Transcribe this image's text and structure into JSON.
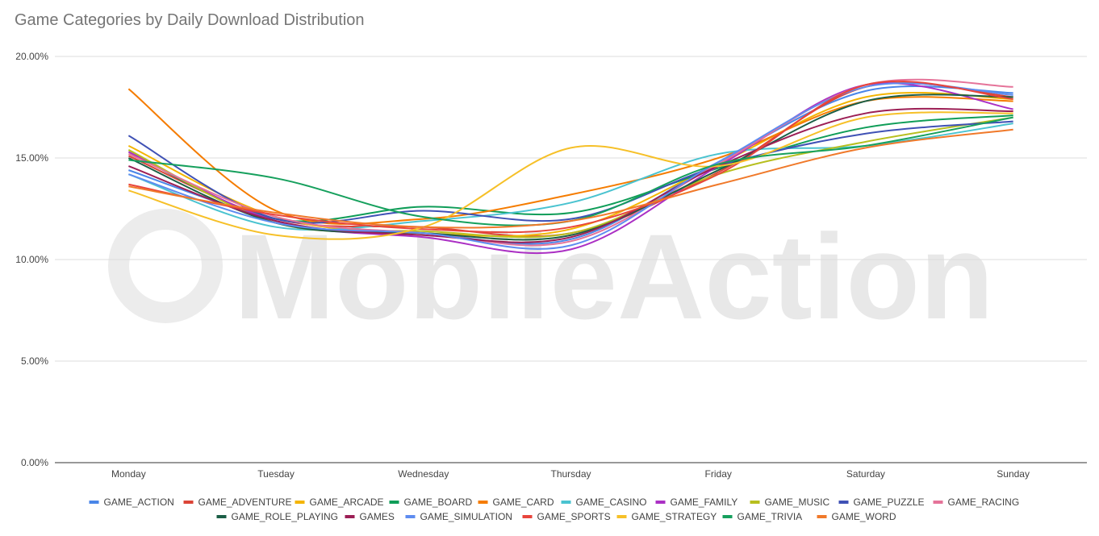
{
  "chart_data": {
    "type": "line",
    "title": "Game Categories by Daily Download Distribution",
    "watermark": "MobileAction",
    "xlabel": "",
    "ylabel": "",
    "ylim": [
      0,
      20
    ],
    "y_ticks": [
      "0.00%",
      "5.00%",
      "10.00%",
      "15.00%",
      "20.00%"
    ],
    "y_tick_values": [
      0,
      5,
      10,
      15,
      20
    ],
    "grid": true,
    "legend_position": "bottom",
    "categories": [
      "Monday",
      "Tuesday",
      "Wednesday",
      "Thursday",
      "Friday",
      "Saturday",
      "Sunday"
    ],
    "series": [
      {
        "name": "GAME_ACTION",
        "color": "#4a86e8",
        "values": [
          14.4,
          12.0,
          11.3,
          11.0,
          14.8,
          18.3,
          18.2
        ]
      },
      {
        "name": "GAME_ADVENTURE",
        "color": "#db4437",
        "values": [
          15.1,
          12.0,
          11.6,
          11.3,
          14.3,
          18.5,
          18.0
        ]
      },
      {
        "name": "GAME_ARCADE",
        "color": "#f4b400",
        "values": [
          15.6,
          12.1,
          11.3,
          11.5,
          14.7,
          18.0,
          17.9
        ]
      },
      {
        "name": "GAME_BOARD",
        "color": "#0f9d58",
        "values": [
          15.3,
          12.0,
          12.6,
          12.3,
          14.5,
          16.5,
          17.1
        ]
      },
      {
        "name": "GAME_CARD",
        "color": "#f57c00",
        "values": [
          18.4,
          12.4,
          12.0,
          13.2,
          15.0,
          17.8,
          17.8
        ]
      },
      {
        "name": "GAME_CASINO",
        "color": "#4ac3d0",
        "values": [
          14.2,
          11.6,
          11.9,
          12.8,
          15.2,
          15.6,
          16.7
        ]
      },
      {
        "name": "GAME_FAMILY",
        "color": "#ab30c4",
        "values": [
          15.3,
          11.9,
          11.1,
          10.5,
          14.6,
          18.6,
          17.4
        ]
      },
      {
        "name": "GAME_MUSIC",
        "color": "#b7bf1f",
        "values": [
          15.4,
          11.8,
          11.4,
          11.3,
          14.2,
          15.8,
          17.0
        ]
      },
      {
        "name": "GAME_PUZZLE",
        "color": "#3f51b5",
        "values": [
          16.1,
          12.0,
          12.4,
          12.0,
          14.6,
          16.2,
          16.8
        ]
      },
      {
        "name": "GAME_RACING",
        "color": "#e57399",
        "values": [
          15.2,
          12.1,
          11.3,
          10.9,
          14.7,
          18.6,
          18.5
        ]
      },
      {
        "name": "GAME_ROLE_PLAYING",
        "color": "#1b5e46",
        "values": [
          15.0,
          11.8,
          11.3,
          11.2,
          14.4,
          17.8,
          18.0
        ]
      },
      {
        "name": "GAMES",
        "color": "#9c1f55",
        "values": [
          14.6,
          11.9,
          11.2,
          11.1,
          14.6,
          17.2,
          17.3
        ]
      },
      {
        "name": "GAME_SIMULATION",
        "color": "#5e8cf0",
        "values": [
          14.2,
          11.8,
          11.3,
          10.7,
          14.8,
          18.5,
          18.1
        ]
      },
      {
        "name": "GAME_SPORTS",
        "color": "#e8453c",
        "values": [
          13.7,
          12.2,
          11.5,
          11.6,
          14.2,
          18.6,
          17.9
        ]
      },
      {
        "name": "GAME_STRATEGY",
        "color": "#f6c028",
        "values": [
          13.4,
          11.2,
          11.6,
          15.5,
          14.6,
          17.0,
          17.2
        ]
      },
      {
        "name": "GAME_TRIVIA",
        "color": "#16a05d",
        "values": [
          14.9,
          14.0,
          12.1,
          11.9,
          14.7,
          15.6,
          17.0
        ]
      },
      {
        "name": "GAME_WORD",
        "color": "#f0792a",
        "values": [
          13.6,
          12.3,
          11.6,
          11.9,
          13.7,
          15.5,
          16.4
        ]
      }
    ]
  }
}
